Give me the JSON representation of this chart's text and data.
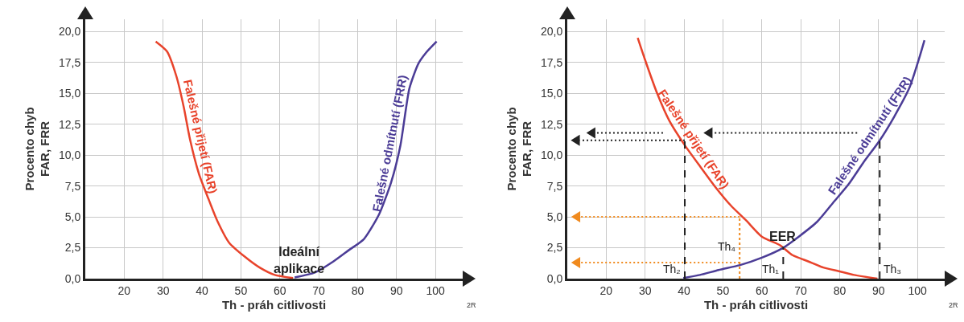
{
  "chart_data": [
    {
      "type": "line",
      "xlabel": "Th - práh citlivosti",
      "ylabel": "Procento chyb\nFAR, FRR",
      "xlim": [
        10,
        107
      ],
      "ylim": [
        0,
        21
      ],
      "xticks": [
        20,
        30,
        40,
        50,
        60,
        70,
        80,
        90,
        100
      ],
      "yticks": [
        {
          "value": 0,
          "label": "0,0"
        },
        {
          "value": 2.5,
          "label": "2,5"
        },
        {
          "value": 5,
          "label": "5,0"
        },
        {
          "value": 7.5,
          "label": "7,5"
        },
        {
          "value": 10,
          "label": "10,0"
        },
        {
          "value": 12.5,
          "label": "12,5"
        },
        {
          "value": 15,
          "label": "15,0"
        },
        {
          "value": 17.5,
          "label": "17,5"
        },
        {
          "value": 20,
          "label": "20,0"
        }
      ],
      "grid": true,
      "line_style": "solid",
      "series": [
        {
          "name": "Falešné přijetí (FAR)",
          "color": "#e8432b",
          "x": [
            28.1,
            31,
            33.4,
            35.3,
            36.9,
            39.2,
            41.6,
            43.9,
            47,
            50.9,
            54.8,
            58.7,
            63.4
          ],
          "values": [
            19.2,
            18.4,
            16.4,
            13.9,
            11.3,
            8.5,
            6.5,
            4.7,
            2.9,
            1.8,
            0.9,
            0.3,
            0.05
          ]
        },
        {
          "name": "Falešné odmítnutí (FRR)",
          "color": "#4b3c96",
          "x": [
            63.8,
            69,
            73.8,
            77.7,
            81.6,
            85.5,
            88.6,
            91,
            93.3,
            95.6,
            97.6,
            100.3
          ],
          "values": [
            0.1,
            0.5,
            1.4,
            2.3,
            3.2,
            5.2,
            7.8,
            10.8,
            15.4,
            17.4,
            18.3,
            19.2
          ]
        }
      ],
      "annotations": [
        {
          "text": "Ideální\naplikace",
          "x": 65,
          "y": 0
        },
        "2R"
      ]
    },
    {
      "type": "line",
      "xlabel": "Th - práh citlivosti",
      "ylabel": "Procento chyb\nFAR, FRR",
      "xlim": [
        10,
        107
      ],
      "ylim": [
        0,
        21
      ],
      "xticks": [
        20,
        30,
        40,
        50,
        60,
        70,
        80,
        90,
        100
      ],
      "yticks": [
        {
          "value": 0,
          "label": "0,0"
        },
        {
          "value": 2.5,
          "label": "2,5"
        },
        {
          "value": 5,
          "label": "5,0"
        },
        {
          "value": 7.5,
          "label": "7,5"
        },
        {
          "value": 10,
          "label": "10,0"
        },
        {
          "value": 12.5,
          "label": "12,5"
        },
        {
          "value": 15,
          "label": "15,0"
        },
        {
          "value": 17.5,
          "label": "17,5"
        },
        {
          "value": 20,
          "label": "20,0"
        }
      ],
      "grid": true,
      "line_style": "solid",
      "series": [
        {
          "name": "Falešné přijetí (FAR)",
          "color": "#e8432b",
          "x": [
            28.1,
            29.9,
            33.1,
            36.2,
            40.2,
            44.1,
            48.1,
            52.1,
            56,
            60,
            64.7,
            67.9,
            71.9,
            75.8,
            79.8,
            83.7,
            89.7
          ],
          "values": [
            19.5,
            17.8,
            15,
            12.8,
            10.8,
            9.1,
            7.4,
            5.9,
            4.7,
            3.4,
            2.7,
            1.9,
            1.4,
            0.9,
            0.6,
            0.3,
            0
          ]
        },
        {
          "name": "Falešné odmítnutí (FRR)",
          "color": "#4b3c96",
          "x": [
            39.8,
            44.1,
            48.9,
            54.4,
            60,
            65.5,
            69.5,
            74.2,
            78.2,
            82.2,
            86.1,
            90.1,
            94,
            98,
            100.4,
            101.8
          ],
          "values": [
            0.05,
            0.3,
            0.7,
            1.1,
            1.7,
            2.5,
            3.4,
            4.6,
            6.1,
            7.6,
            9.4,
            11.1,
            13.1,
            15.5,
            17.8,
            19.3
          ]
        },
        {
          "color": "#222222",
          "line_style": "dashed",
          "x": [
            40.2,
            40.2
          ],
          "values": [
            0,
            11.2
          ]
        },
        {
          "color": "#222222",
          "line_style": "dashed",
          "x": [
            90.3,
            90.3
          ],
          "values": [
            0,
            11.2
          ]
        },
        {
          "color": "#222222",
          "line_style": "dashed",
          "x": [
            65.5,
            65.5
          ],
          "values": [
            0,
            2.6
          ]
        },
        {
          "color": "#f08a1e",
          "line_style": "dotted",
          "x": [
            54.3,
            54.3
          ],
          "values": [
            0,
            5
          ]
        }
      ],
      "annotations": [
        {
          "text": "EER",
          "x": 65.3,
          "y": 2.6
        },
        {
          "text": "Th₁",
          "x": 65.5,
          "y": 0
        },
        {
          "text": "Th₂",
          "x": 40.2,
          "y": 0
        },
        {
          "text": "Th₃",
          "x": 90.3,
          "y": 0
        },
        {
          "text": "Th₄",
          "x": 54.3,
          "y": 1.8
        },
        "2R"
      ]
    }
  ]
}
